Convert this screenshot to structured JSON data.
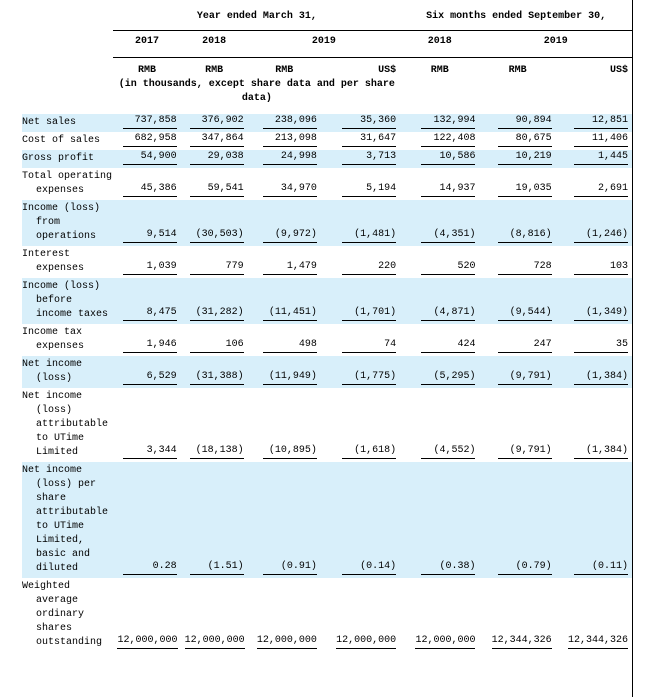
{
  "header": {
    "period_groups": [
      "Year ended March 31,",
      "Six months ended September 30,"
    ],
    "years": [
      "2017",
      "2018",
      "2019",
      "2018",
      "2019"
    ],
    "currencies": [
      "RMB",
      "RMB",
      "RMB",
      "US$",
      "RMB",
      "RMB",
      "US$"
    ],
    "note": "(in thousands, except share data and per share data)"
  },
  "table": {
    "rows": [
      {
        "label": "Net sales",
        "values": [
          "737,858",
          "376,902",
          "238,096",
          "35,360",
          "132,994",
          "90,894",
          "12,851"
        ]
      },
      {
        "label": "Cost of sales",
        "values": [
          "682,958",
          "347,864",
          "213,098",
          "31,647",
          "122,408",
          "80,675",
          "11,406"
        ]
      },
      {
        "label": "Gross profit",
        "values": [
          "54,900",
          "29,038",
          "24,998",
          "3,713",
          "10,586",
          "10,219",
          "1,445"
        ]
      },
      {
        "label": "Total operating expenses",
        "values": [
          "45,386",
          "59,541",
          "34,970",
          "5,194",
          "14,937",
          "19,035",
          "2,691"
        ]
      },
      {
        "label": "Income (loss) from operations",
        "values": [
          "9,514",
          "(30,503)",
          "(9,972)",
          "(1,481)",
          "(4,351)",
          "(8,816)",
          "(1,246)"
        ]
      },
      {
        "label": "Interest expenses",
        "values": [
          "1,039",
          "779",
          "1,479",
          "220",
          "520",
          "728",
          "103"
        ]
      },
      {
        "label": "Income (loss) before income taxes",
        "values": [
          "8,475",
          "(31,282)",
          "(11,451)",
          "(1,701)",
          "(4,871)",
          "(9,544)",
          "(1,349)"
        ]
      },
      {
        "label": "Income tax expenses",
        "values": [
          "1,946",
          "106",
          "498",
          "74",
          "424",
          "247",
          "35"
        ]
      },
      {
        "label": "Net income (loss)",
        "values": [
          "6,529",
          "(31,388)",
          "(11,949)",
          "(1,775)",
          "(5,295)",
          "(9,791)",
          "(1,384)"
        ]
      },
      {
        "label": "Net income (loss) attributable to UTime Limited",
        "values": [
          "3,344",
          "(18,138)",
          "(10,895)",
          "(1,618)",
          "(4,552)",
          "(9,791)",
          "(1,384)"
        ]
      },
      {
        "label": "Net income (loss) per share attributable to UTime Limited, basic and diluted",
        "values": [
          "0.28",
          "(1.51)",
          "(0.91)",
          "(0.14)",
          "(0.38)",
          "(0.79)",
          "(0.11)"
        ]
      },
      {
        "label": "Weighted average ordinary shares outstanding",
        "values": [
          "12,000,000",
          "12,000,000",
          "12,000,000",
          "12,000,000",
          "12,000,000",
          "12,344,326",
          "12,344,326"
        ]
      }
    ]
  }
}
